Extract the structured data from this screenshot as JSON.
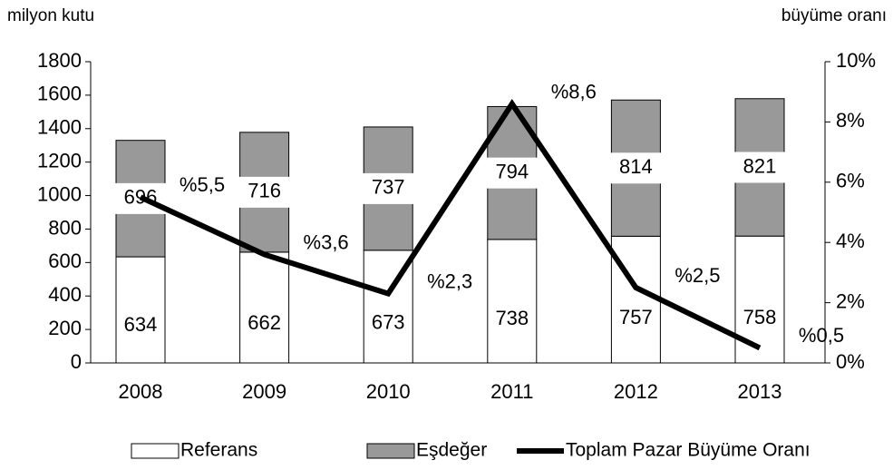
{
  "chart_data": {
    "type": "bar",
    "ylabel": "milyon kutu",
    "y2label": "büyüme oranı",
    "categories": [
      "2008",
      "2009",
      "2010",
      "2011",
      "2012",
      "2013"
    ],
    "series": [
      {
        "name": "Referans",
        "color": "#ffffff",
        "values": [
          634,
          662,
          673,
          738,
          757,
          758
        ]
      },
      {
        "name": "Eşdeğer",
        "color": "#999999",
        "values": [
          696,
          716,
          737,
          794,
          814,
          821
        ]
      },
      {
        "name": "Toplam Pazar Büyüme Oranı",
        "color": "#000000",
        "type": "line",
        "axis": "y2",
        "values": [
          5.5,
          3.6,
          2.3,
          8.6,
          2.5,
          0.5
        ],
        "value_labels": [
          "%5,5",
          "%3,6",
          "%2,3",
          "%8,6",
          "%2,5",
          "%0,5"
        ]
      }
    ],
    "ylim": [
      0,
      1800
    ],
    "yticks": [
      0,
      200,
      400,
      600,
      800,
      1000,
      1200,
      1400,
      1600,
      1800
    ],
    "y2lim": [
      0,
      10
    ],
    "y2ticks": [
      {
        "value": 0,
        "label": "0%"
      },
      {
        "value": 2,
        "label": "2%"
      },
      {
        "value": 4,
        "label": "4%"
      },
      {
        "value": 6,
        "label": "6%"
      },
      {
        "value": 8,
        "label": "8%"
      },
      {
        "value": 10,
        "label": "10%"
      }
    ],
    "legend": "bottom"
  }
}
